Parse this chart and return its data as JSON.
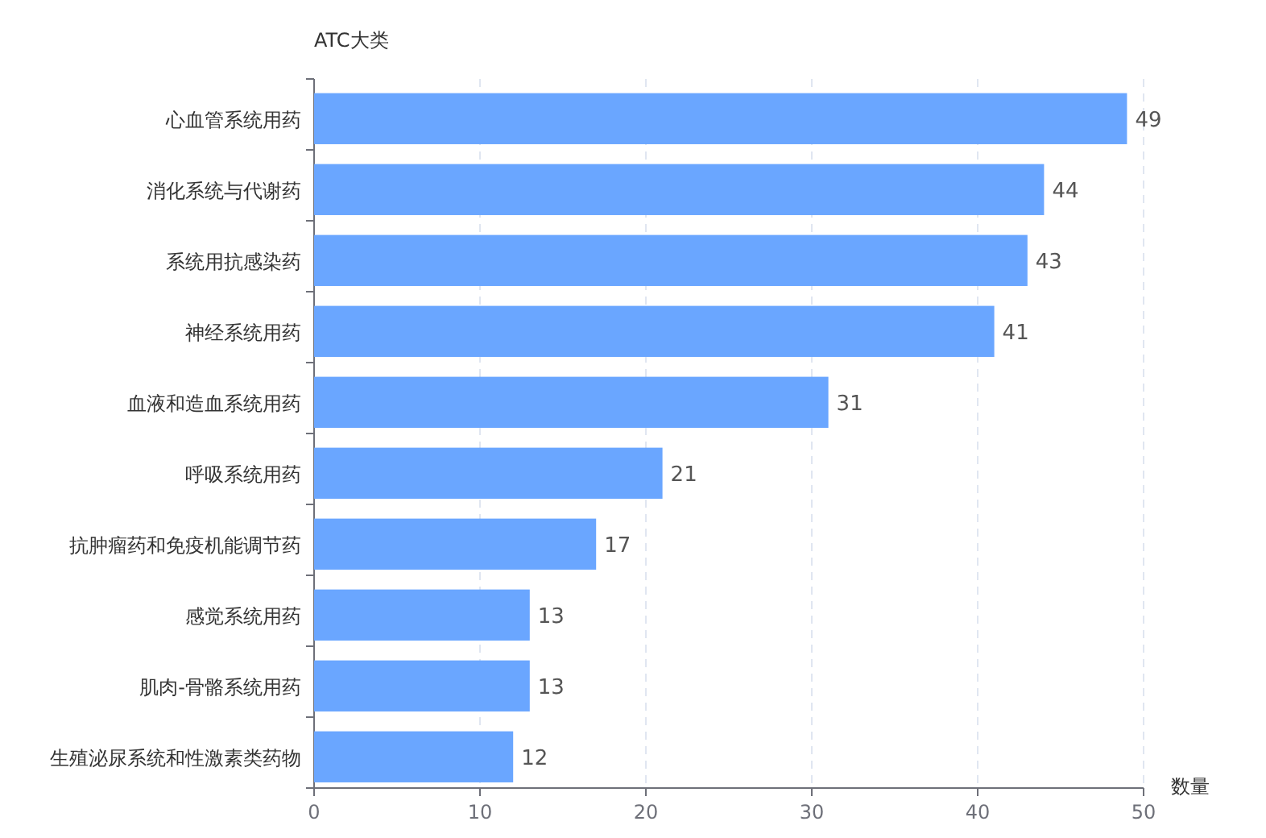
{
  "chart_data": {
    "type": "bar",
    "orientation": "horizontal",
    "ylabel": "ATC大类",
    "xlabel": "数量",
    "categories": [
      "心血管系统用药",
      "消化系统与代谢药",
      "系统用抗感染药",
      "神经系统用药",
      "血液和造血系统用药",
      "呼吸系统用药",
      "抗肿瘤药和免疫机能调节药",
      "感觉系统用药",
      "肌肉-骨骼系统用药",
      "生殖泌尿系统和性激素类药物"
    ],
    "values": [
      49,
      44,
      43,
      41,
      31,
      21,
      17,
      13,
      13,
      12
    ],
    "color": "#6aa6ff",
    "xlim": [
      0,
      50
    ],
    "xticks": [
      0,
      10,
      20,
      30,
      40,
      50
    ],
    "grid": "x",
    "data_labels": true
  }
}
